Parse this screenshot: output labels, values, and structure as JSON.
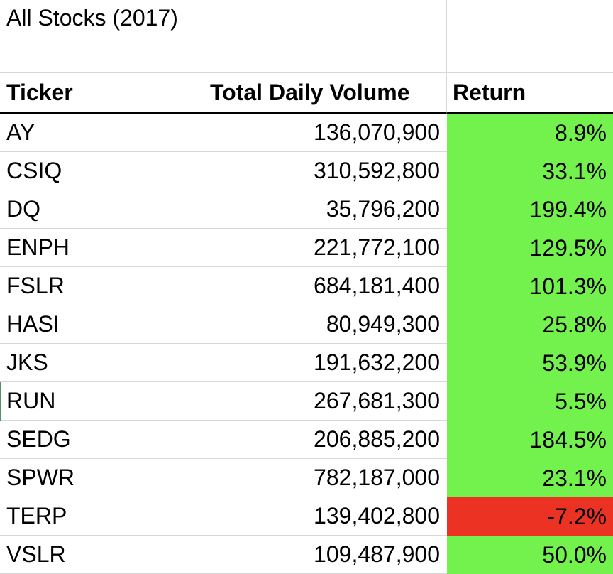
{
  "title": "All Stocks (2017)",
  "columns": {
    "ticker": "Ticker",
    "volume": "Total Daily Volume",
    "return": "Return"
  },
  "colors": {
    "positive": "#73F24E",
    "negative": "#EC3323",
    "gridline": "#D8D8D8",
    "header_border": "#000000",
    "row_marker": "#55925F"
  },
  "rows": [
    {
      "ticker": "AY",
      "volume": "136,070,900",
      "return": "8.9%",
      "sentiment": "positive"
    },
    {
      "ticker": "CSIQ",
      "volume": "310,592,800",
      "return": "33.1%",
      "sentiment": "positive"
    },
    {
      "ticker": "DQ",
      "volume": "35,796,200",
      "return": "199.4%",
      "sentiment": "positive"
    },
    {
      "ticker": "ENPH",
      "volume": "221,772,100",
      "return": "129.5%",
      "sentiment": "positive"
    },
    {
      "ticker": "FSLR",
      "volume": "684,181,400",
      "return": "101.3%",
      "sentiment": "positive"
    },
    {
      "ticker": "HASI",
      "volume": "80,949,300",
      "return": "25.8%",
      "sentiment": "positive"
    },
    {
      "ticker": "JKS",
      "volume": "191,632,200",
      "return": "53.9%",
      "sentiment": "positive"
    },
    {
      "ticker": "RUN",
      "volume": "267,681,300",
      "return": "5.5%",
      "sentiment": "positive"
    },
    {
      "ticker": "SEDG",
      "volume": "206,885,200",
      "return": "184.5%",
      "sentiment": "positive"
    },
    {
      "ticker": "SPWR",
      "volume": "782,187,000",
      "return": "23.1%",
      "sentiment": "positive"
    },
    {
      "ticker": "TERP",
      "volume": "139,402,800",
      "return": "-7.2%",
      "sentiment": "negative"
    },
    {
      "ticker": "VSLR",
      "volume": "109,487,900",
      "return": "50.0%",
      "sentiment": "positive"
    }
  ],
  "chart_data": {
    "type": "table",
    "title": "All Stocks (2017)",
    "columns": [
      "Ticker",
      "Total Daily Volume",
      "Return"
    ],
    "rows": [
      [
        "AY",
        136070900,
        "8.9%"
      ],
      [
        "CSIQ",
        310592800,
        "33.1%"
      ],
      [
        "DQ",
        35796200,
        "199.4%"
      ],
      [
        "ENPH",
        221772100,
        "129.5%"
      ],
      [
        "FSLR",
        684181400,
        "101.3%"
      ],
      [
        "HASI",
        80949300,
        "25.8%"
      ],
      [
        "JKS",
        191632200,
        "53.9%"
      ],
      [
        "RUN",
        267681300,
        "5.5%"
      ],
      [
        "SEDG",
        206885200,
        "184.5%"
      ],
      [
        "SPWR",
        782187000,
        "23.1%"
      ],
      [
        "TERP",
        139402800,
        "-7.2%"
      ],
      [
        "VSLR",
        109487900,
        "50.0%"
      ]
    ]
  }
}
